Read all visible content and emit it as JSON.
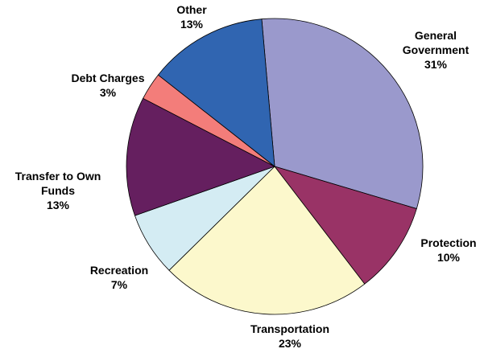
{
  "chart_data": {
    "type": "pie",
    "title": "",
    "slices": [
      {
        "label_lines": [
          "General",
          "Government"
        ],
        "value_label": "31%",
        "value": 31,
        "color": "#9a99cc"
      },
      {
        "label_lines": [
          "Protection"
        ],
        "value_label": "10%",
        "value": 10,
        "color": "#993366"
      },
      {
        "label_lines": [
          "Transportation"
        ],
        "value_label": "23%",
        "value": 23,
        "color": "#fcf8cc"
      },
      {
        "label_lines": [
          "Recreation"
        ],
        "value_label": "7%",
        "value": 7,
        "color": "#d4ecf3"
      },
      {
        "label_lines": [
          "Transfer to Own",
          "Funds"
        ],
        "value_label": "13%",
        "value": 13,
        "color": "#651f5f"
      },
      {
        "label_lines": [
          "Debt Charges"
        ],
        "value_label": "3%",
        "value": 3,
        "color": "#f37d7a"
      },
      {
        "label_lines": [
          "Other"
        ],
        "value_label": "13%",
        "value": 13,
        "color": "#3065b1"
      }
    ],
    "start_angle_deg": -95,
    "direction": "clockwise"
  }
}
